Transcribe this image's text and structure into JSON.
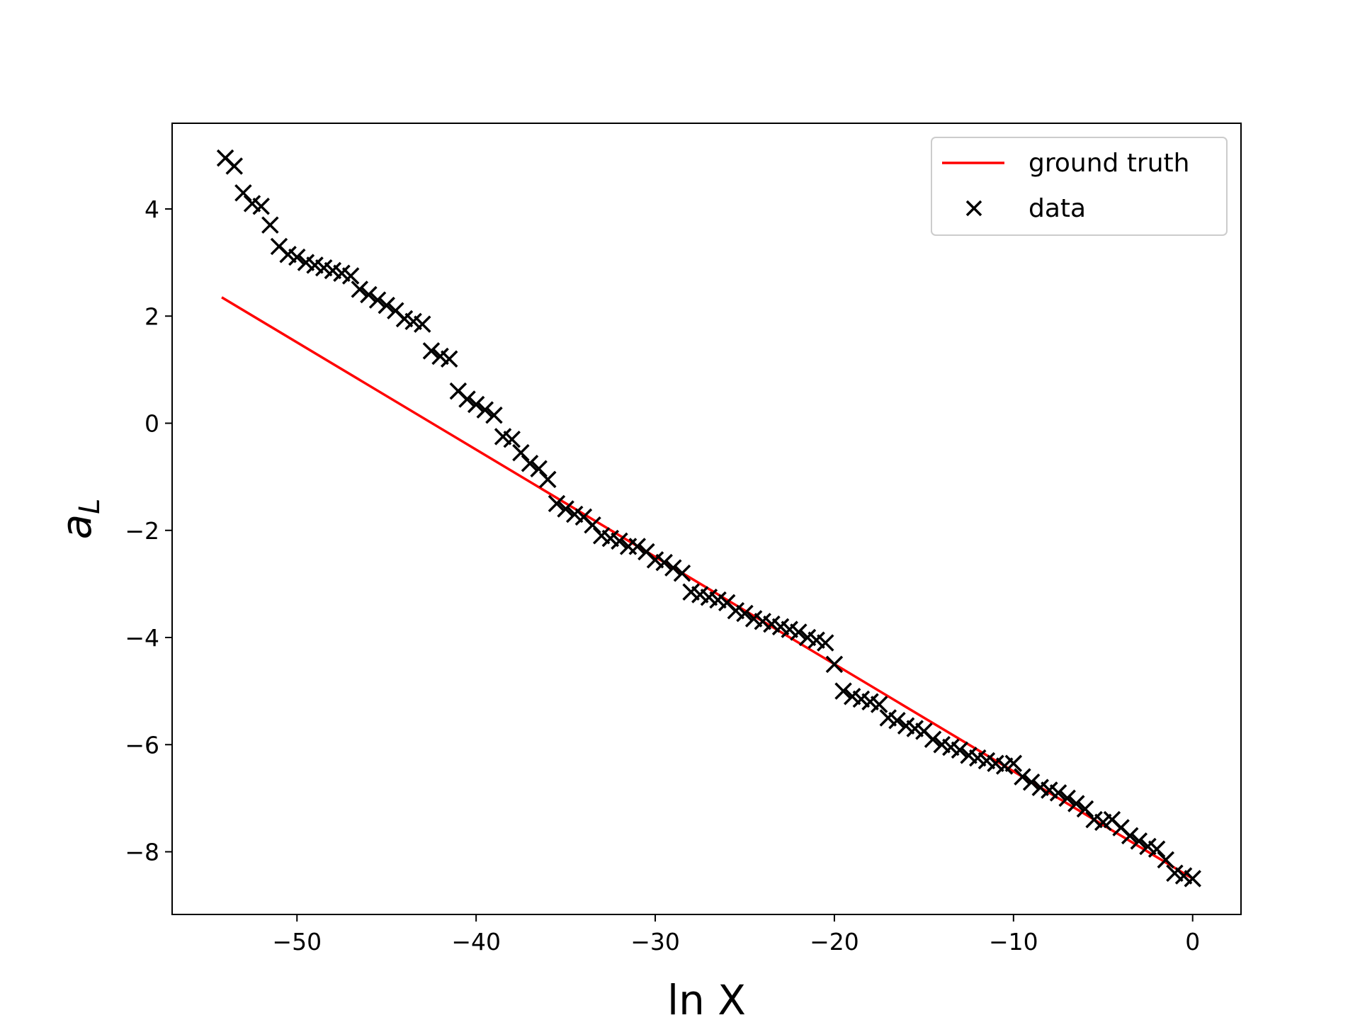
{
  "chart_data": {
    "type": "scatter",
    "x_label": "ln X",
    "y_label": "a_L",
    "xlim": [
      -56.97,
      2.7
    ],
    "ylim": [
      -9.17,
      5.6
    ],
    "xticks": [
      {
        "value": -50,
        "label": "−50"
      },
      {
        "value": -40,
        "label": "−40"
      },
      {
        "value": -30,
        "label": "−30"
      },
      {
        "value": -20,
        "label": "−20"
      },
      {
        "value": -10,
        "label": "−10"
      },
      0
    ],
    "yticks": [
      {
        "value": -8,
        "label": "−8"
      },
      {
        "value": -6,
        "label": "−6"
      },
      {
        "value": -4,
        "label": "−4"
      },
      {
        "value": -2,
        "label": "−2"
      },
      0,
      2,
      4
    ],
    "grid": false,
    "legend": "upper right",
    "series": [
      {
        "name": "ground truth",
        "type": "line",
        "color": "#ff0000",
        "x": [
          -54.2,
          0
        ],
        "values": [
          2.35,
          -8.5
        ]
      },
      {
        "name": "data",
        "type": "scatter",
        "color": "#000000",
        "x": [
          -54,
          -53.5,
          -53,
          -52.5,
          -52,
          -51.5,
          -51,
          -50.5,
          -50,
          -49.5,
          -49,
          -48.5,
          -48,
          -47.5,
          -47,
          -46.5,
          -46,
          -45.5,
          -45,
          -44.5,
          -44,
          -43.5,
          -43,
          -42.5,
          -42,
          -41.5,
          -41,
          -40.5,
          -40,
          -39.5,
          -39,
          -38.5,
          -38,
          -37.5,
          -37,
          -36.5,
          -36,
          -35.5,
          -35,
          -34.5,
          -34,
          -33.5,
          -33,
          -32.5,
          -32,
          -31.5,
          -31,
          -30.5,
          -30,
          -29.5,
          -29,
          -28.5,
          -28,
          -27.5,
          -27,
          -26.5,
          -26,
          -25.5,
          -25,
          -24.5,
          -24,
          -23.5,
          -23,
          -22.5,
          -22,
          -21.5,
          -21,
          -20.5,
          -20,
          -19.5,
          -19,
          -18.5,
          -18,
          -17.5,
          -17,
          -16.5,
          -16,
          -15.5,
          -15,
          -14.5,
          -14,
          -13.5,
          -13,
          -12.5,
          -12,
          -11.5,
          -11,
          -10.5,
          -10,
          -9.5,
          -9,
          -8.5,
          -8,
          -7.5,
          -7,
          -6.5,
          -6,
          -5.5,
          -5,
          -4.5,
          -4,
          -3.5,
          -3,
          -2.5,
          -2,
          -1.5,
          -1,
          -0.5,
          0
        ],
        "values": [
          4.95,
          4.8,
          4.3,
          4.1,
          4.05,
          3.7,
          3.3,
          3.15,
          3.1,
          3.0,
          2.95,
          2.9,
          2.85,
          2.8,
          2.75,
          2.5,
          2.4,
          2.3,
          2.2,
          2.1,
          1.95,
          1.9,
          1.85,
          1.35,
          1.25,
          1.2,
          0.6,
          0.45,
          0.35,
          0.25,
          0.15,
          -0.25,
          -0.3,
          -0.55,
          -0.75,
          -0.85,
          -1.05,
          -1.5,
          -1.6,
          -1.7,
          -1.75,
          -1.9,
          -2.1,
          -2.15,
          -2.2,
          -2.3,
          -2.3,
          -2.4,
          -2.55,
          -2.6,
          -2.7,
          -2.8,
          -3.15,
          -3.2,
          -3.25,
          -3.3,
          -3.35,
          -3.5,
          -3.55,
          -3.65,
          -3.7,
          -3.75,
          -3.8,
          -3.85,
          -3.9,
          -4.0,
          -4.05,
          -4.1,
          -4.5,
          -5.0,
          -5.1,
          -5.15,
          -5.2,
          -5.25,
          -5.5,
          -5.55,
          -5.65,
          -5.7,
          -5.75,
          -5.9,
          -6.0,
          -6.05,
          -6.1,
          -6.2,
          -6.25,
          -6.3,
          -6.35,
          -6.4,
          -6.35,
          -6.6,
          -6.7,
          -6.8,
          -6.85,
          -6.9,
          -7.0,
          -7.1,
          -7.2,
          -7.4,
          -7.45,
          -7.4,
          -7.55,
          -7.7,
          -7.8,
          -7.9,
          -7.95,
          -8.15,
          -8.4,
          -8.45,
          -8.5
        ]
      }
    ]
  }
}
